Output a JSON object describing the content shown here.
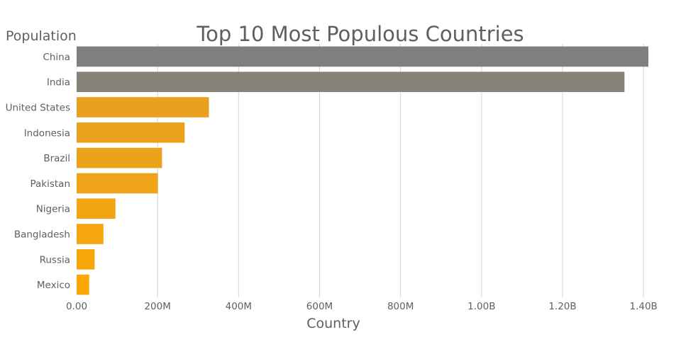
{
  "chart_data": {
    "type": "bar",
    "orientation": "horizontal",
    "title": "Top 10 Most Populous Countries",
    "xlabel": "Country",
    "ylabel": "Population",
    "categories": [
      "China",
      "India",
      "United States",
      "Indonesia",
      "Brazil",
      "Pakistan",
      "Nigeria",
      "Bangladesh",
      "Russia",
      "Mexico"
    ],
    "values": [
      1412000000,
      1353000000,
      326700000,
      266800000,
      211000000,
      200800000,
      95900000,
      66200000,
      44500000,
      31000000
    ],
    "colors": [
      "#7f7f7f",
      "#878378",
      "#e9a020",
      "#eaa11e",
      "#eca21b",
      "#eea318",
      "#f2a413",
      "#f4a50f",
      "#f7a60a",
      "#fba805"
    ],
    "xlim": [
      0,
      1440000000
    ],
    "xticks": [
      0,
      200000000,
      400000000,
      600000000,
      800000000,
      1000000000,
      1200000000,
      1400000000
    ],
    "xtick_labels": [
      "0.00",
      "200M",
      "400M",
      "600M",
      "800M",
      "1.00B",
      "1.20B",
      "1.40B"
    ],
    "grid": "vertical"
  }
}
